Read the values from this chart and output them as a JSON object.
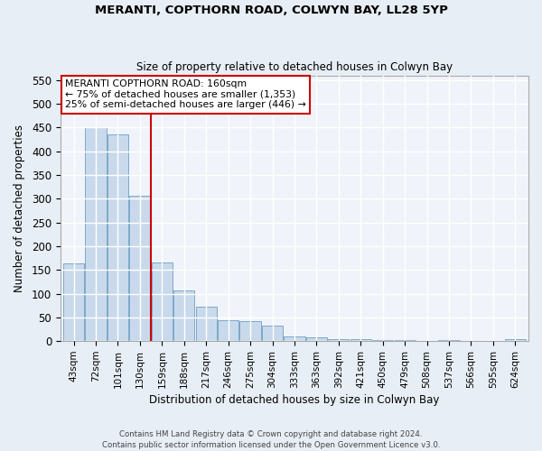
{
  "title1": "MERANTI, COPTHORN ROAD, COLWYN BAY, LL28 5YP",
  "title2": "Size of property relative to detached houses in Colwyn Bay",
  "xlabel": "Distribution of detached houses by size in Colwyn Bay",
  "ylabel": "Number of detached properties",
  "footer1": "Contains HM Land Registry data © Crown copyright and database right 2024.",
  "footer2": "Contains public sector information licensed under the Open Government Licence v3.0.",
  "annotation_title": "MERANTI COPTHORN ROAD: 160sqm",
  "annotation_line1": "← 75% of detached houses are smaller (1,353)",
  "annotation_line2": "25% of semi-detached houses are larger (446) →",
  "bar_color": "#c9d9ec",
  "bar_edge_color": "#6a9fc0",
  "categories": [
    "43sqm",
    "72sqm",
    "101sqm",
    "130sqm",
    "159sqm",
    "188sqm",
    "217sqm",
    "246sqm",
    "275sqm",
    "304sqm",
    "333sqm",
    "363sqm",
    "392sqm",
    "421sqm",
    "450sqm",
    "479sqm",
    "508sqm",
    "537sqm",
    "566sqm",
    "595sqm",
    "624sqm"
  ],
  "values": [
    163,
    450,
    435,
    307,
    165,
    106,
    73,
    44,
    43,
    32,
    10,
    8,
    5,
    4,
    2,
    2,
    1,
    2,
    1,
    1,
    5
  ],
  "ylim": [
    0,
    560
  ],
  "yticks": [
    0,
    50,
    100,
    150,
    200,
    250,
    300,
    350,
    400,
    450,
    500,
    550
  ],
  "bg_color": "#e8eef5",
  "plot_bg_color": "#f0f4fa",
  "grid_color": "#ffffff",
  "red_line_color": "#cc0000",
  "annotation_box_color": "#ffffff",
  "annotation_box_edge": "#cc0000",
  "red_line_x": 3.5
}
